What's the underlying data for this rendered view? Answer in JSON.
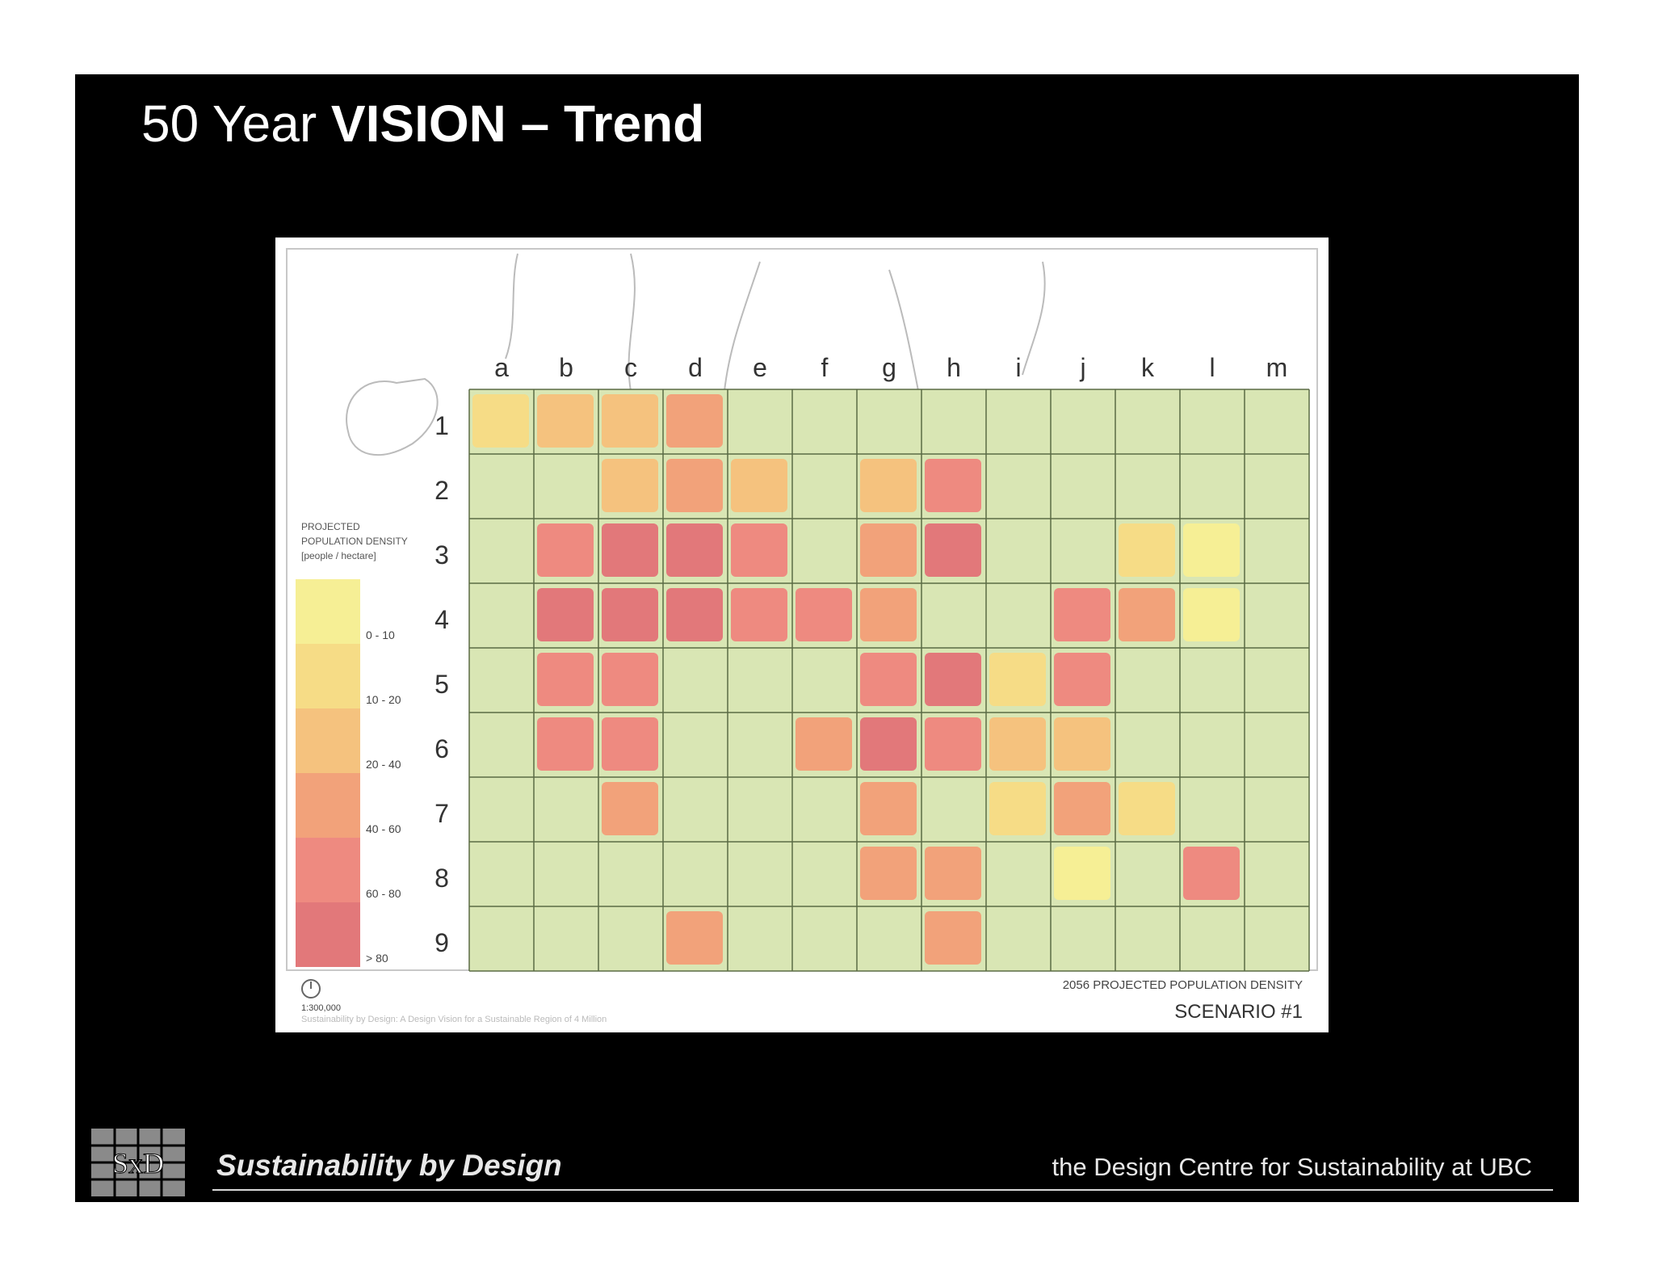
{
  "slide": {
    "title_prefix": "50 Year ",
    "title_bold": "VISION – Trend"
  },
  "map": {
    "column_labels": [
      "a",
      "b",
      "c",
      "d",
      "e",
      "f",
      "g",
      "h",
      "i",
      "j",
      "k",
      "l",
      "m"
    ],
    "row_labels": [
      "1",
      "2",
      "3",
      "4",
      "5",
      "6",
      "7",
      "8",
      "9"
    ],
    "legend": {
      "title_lines": [
        "PROJECTED",
        "POPULATION DENSITY",
        "[people / hectare]"
      ],
      "classes": [
        {
          "label": "0 - 10",
          "color": "#f6ef95"
        },
        {
          "label": "10 - 20",
          "color": "#f6dc86"
        },
        {
          "label": "20 - 40",
          "color": "#f5c27e"
        },
        {
          "label": "40 - 60",
          "color": "#f2a27a"
        },
        {
          "label": "60 - 80",
          "color": "#ee8a80"
        },
        {
          "label": "> 80",
          "color": "#e2787a"
        }
      ]
    },
    "scale": "1:300,000",
    "credit": "Sustainability by Design: A Design Vision for a Sustainable Region of 4 Million",
    "map_title": "2056 PROJECTED POPULATION DENSITY",
    "scenario": "SCENARIO #1",
    "base_color": "#d9e6b4",
    "grid_color": "#5b6b45",
    "density_cells": [
      {
        "col": "a",
        "row": 1,
        "class": 1
      },
      {
        "col": "b",
        "row": 1,
        "class": 2
      },
      {
        "col": "c",
        "row": 1,
        "class": 2
      },
      {
        "col": "d",
        "row": 1,
        "class": 3
      },
      {
        "col": "c",
        "row": 2,
        "class": 2
      },
      {
        "col": "d",
        "row": 2,
        "class": 3
      },
      {
        "col": "e",
        "row": 2,
        "class": 2
      },
      {
        "col": "g",
        "row": 2,
        "class": 2
      },
      {
        "col": "h",
        "row": 2,
        "class": 4
      },
      {
        "col": "b",
        "row": 3,
        "class": 4
      },
      {
        "col": "c",
        "row": 3,
        "class": 5
      },
      {
        "col": "d",
        "row": 3,
        "class": 5
      },
      {
        "col": "e",
        "row": 3,
        "class": 4
      },
      {
        "col": "g",
        "row": 3,
        "class": 3
      },
      {
        "col": "h",
        "row": 3,
        "class": 5
      },
      {
        "col": "k",
        "row": 3,
        "class": 1
      },
      {
        "col": "l",
        "row": 3,
        "class": 0
      },
      {
        "col": "b",
        "row": 4,
        "class": 5
      },
      {
        "col": "c",
        "row": 4,
        "class": 5
      },
      {
        "col": "d",
        "row": 4,
        "class": 5
      },
      {
        "col": "e",
        "row": 4,
        "class": 4
      },
      {
        "col": "f",
        "row": 4,
        "class": 4
      },
      {
        "col": "g",
        "row": 4,
        "class": 3
      },
      {
        "col": "j",
        "row": 4,
        "class": 4
      },
      {
        "col": "k",
        "row": 4,
        "class": 3
      },
      {
        "col": "l",
        "row": 4,
        "class": 0
      },
      {
        "col": "b",
        "row": 5,
        "class": 4
      },
      {
        "col": "c",
        "row": 5,
        "class": 4
      },
      {
        "col": "g",
        "row": 5,
        "class": 4
      },
      {
        "col": "h",
        "row": 5,
        "class": 5
      },
      {
        "col": "i",
        "row": 5,
        "class": 1
      },
      {
        "col": "j",
        "row": 5,
        "class": 4
      },
      {
        "col": "b",
        "row": 6,
        "class": 4
      },
      {
        "col": "c",
        "row": 6,
        "class": 4
      },
      {
        "col": "f",
        "row": 6,
        "class": 3
      },
      {
        "col": "g",
        "row": 6,
        "class": 5
      },
      {
        "col": "h",
        "row": 6,
        "class": 4
      },
      {
        "col": "i",
        "row": 6,
        "class": 2
      },
      {
        "col": "j",
        "row": 6,
        "class": 2
      },
      {
        "col": "c",
        "row": 7,
        "class": 3
      },
      {
        "col": "g",
        "row": 7,
        "class": 3
      },
      {
        "col": "i",
        "row": 7,
        "class": 1
      },
      {
        "col": "j",
        "row": 7,
        "class": 3
      },
      {
        "col": "k",
        "row": 7,
        "class": 1
      },
      {
        "col": "g",
        "row": 8,
        "class": 3
      },
      {
        "col": "h",
        "row": 8,
        "class": 3
      },
      {
        "col": "j",
        "row": 8,
        "class": 0
      },
      {
        "col": "l",
        "row": 8,
        "class": 4
      },
      {
        "col": "d",
        "row": 9,
        "class": 3
      },
      {
        "col": "h",
        "row": 9,
        "class": 3
      }
    ]
  },
  "footer": {
    "left": "Sustainability by Design",
    "right": "the Design Centre for Sustainability at UBC",
    "logo_text": "SxD"
  }
}
